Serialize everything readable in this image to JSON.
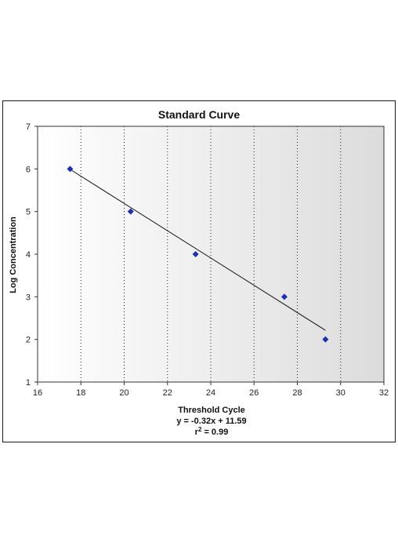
{
  "chart_data": {
    "type": "scatter",
    "title": "Standard Curve",
    "xlabel": "Threshold Cycle",
    "ylabel": "Log Concentration",
    "xlim": [
      16,
      32
    ],
    "ylim": [
      1,
      7
    ],
    "x_ticks": [
      "16",
      "18",
      "20",
      "22",
      "24",
      "26",
      "28",
      "30",
      "32"
    ],
    "y_ticks": [
      "1",
      "2",
      "3",
      "4",
      "5",
      "6",
      "7"
    ],
    "grid": "vertical dotted",
    "points": [
      {
        "x": 17.5,
        "y": 6
      },
      {
        "x": 20.3,
        "y": 5
      },
      {
        "x": 23.3,
        "y": 4
      },
      {
        "x": 27.4,
        "y": 3
      },
      {
        "x": 29.3,
        "y": 2
      }
    ],
    "trendline": {
      "x_start": 17.5,
      "x_end": 29.3,
      "slope": -0.32,
      "intercept": 11.59
    },
    "equation": "y = -0.32x + 11.59",
    "r_squared_label": "r",
    "r_squared_sup": "2",
    "r_squared_value": " = 0.99",
    "colors": {
      "marker": "#1c2fb0",
      "line": "#111111",
      "plot_bg": "#e3e3e3",
      "grid": "#222222"
    }
  }
}
